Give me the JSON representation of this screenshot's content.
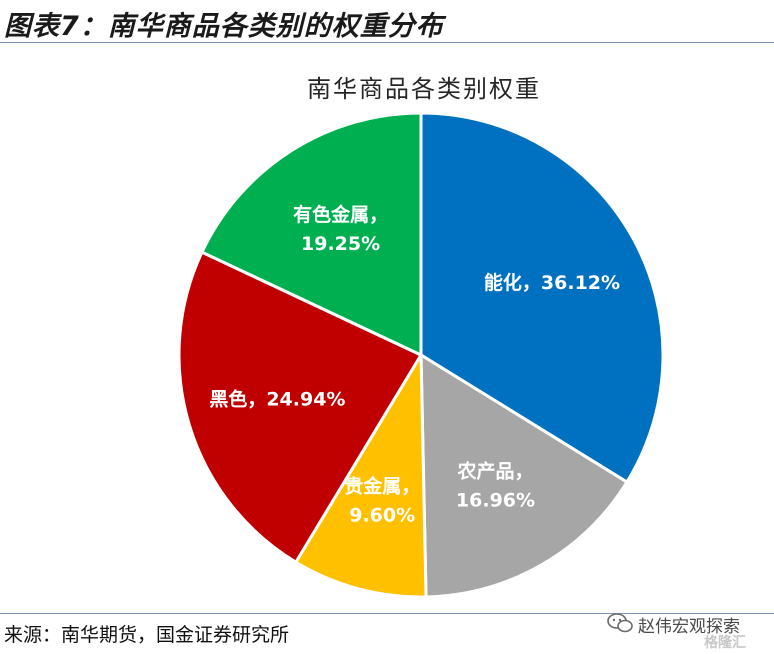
{
  "figure_title": "图表7：南华商品各类别的权重分布",
  "source_text": "来源：南华期货，国金证券研究所",
  "watermark": {
    "text": "赵伟宏观探索",
    "sub": "格隆汇"
  },
  "chart_data": {
    "type": "pie",
    "title": "南华商品各类别权重",
    "slices": [
      {
        "name": "能化",
        "value": 36.12,
        "label": "能化，36.12%",
        "color": "#0070C0"
      },
      {
        "name": "农产品",
        "value": 16.96,
        "label": "农产品，|16.96%",
        "color": "#A6A6A6"
      },
      {
        "name": "贵金属",
        "value": 9.6,
        "label": "贵金属，|9.60%",
        "color": "#FFC000"
      },
      {
        "name": "黑色",
        "value": 24.94,
        "label": "黑色，24.94%",
        "color": "#C00000"
      },
      {
        "name": "有色金属",
        "value": 19.25,
        "label": "有色金属，|19.25%",
        "color": "#00B050"
      }
    ],
    "start_angle_deg": 0,
    "direction": "clockwise",
    "legend": "none"
  }
}
